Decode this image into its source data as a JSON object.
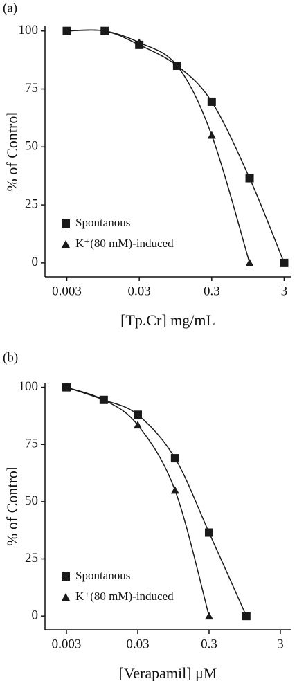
{
  "chart_data": [
    {
      "type": "scatter",
      "label": "(a)",
      "x_label": "[Tp.Cr] mg/mL",
      "y_label": "% of Control",
      "xlog": true,
      "xlim": [
        0.0015,
        3.7
      ],
      "ylim": [
        -6,
        102
      ],
      "xticks": [
        0.003,
        0.03,
        0.3,
        3
      ],
      "yticks": [
        0,
        25,
        50,
        75,
        100
      ],
      "legend": "lower left",
      "series": [
        {
          "name": "Spontanous",
          "marker": "square",
          "color": "#1a1a1a",
          "x": [
            0.003,
            0.01,
            0.03,
            0.1,
            0.3,
            1,
            3
          ],
          "values": [
            100,
            100,
            94,
            85,
            69.5,
            36.5,
            0
          ]
        },
        {
          "name": "K⁺(80 mM)-induced",
          "marker": "triangle",
          "color": "#1a1a1a",
          "x": [
            0.003,
            0.01,
            0.03,
            0.1,
            0.3,
            1
          ],
          "values": [
            100,
            100,
            95,
            85,
            55,
            0
          ]
        }
      ]
    },
    {
      "type": "scatter",
      "label": "(b)",
      "x_label": "[Verapamil] μM",
      "y_label": "% of Control",
      "xlog": true,
      "xlim": [
        0.0015,
        4.2
      ],
      "ylim": [
        -6,
        102
      ],
      "xticks": [
        0.003,
        0.03,
        0.3,
        3
      ],
      "yticks": [
        0,
        25,
        50,
        75,
        100
      ],
      "legend": "lower left",
      "series": [
        {
          "name": "Spontanous",
          "marker": "square",
          "color": "#1a1a1a",
          "x": [
            0.003,
            0.01,
            0.03,
            0.1,
            0.3,
            1
          ],
          "values": [
            100,
            94.5,
            88,
            69,
            36.5,
            0
          ]
        },
        {
          "name": "K⁺(80 mM)-induced",
          "marker": "triangle",
          "color": "#1a1a1a",
          "x": [
            0.003,
            0.01,
            0.03,
            0.1,
            0.3
          ],
          "values": [
            100,
            94.5,
            83.5,
            55,
            0
          ]
        }
      ]
    }
  ]
}
